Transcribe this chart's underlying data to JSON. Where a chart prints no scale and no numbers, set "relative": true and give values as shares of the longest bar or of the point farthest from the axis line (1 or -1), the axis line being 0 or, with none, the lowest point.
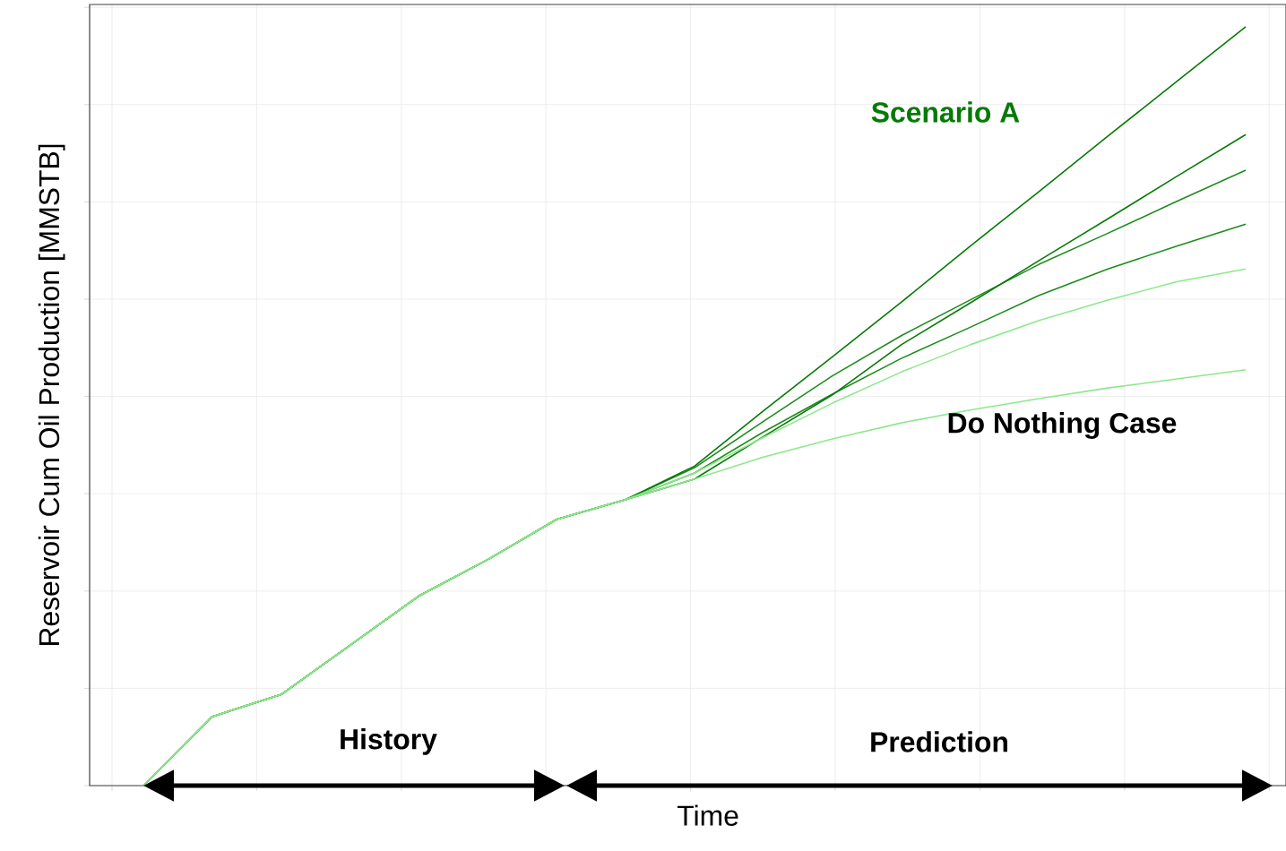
{
  "chart_data": {
    "type": "line",
    "relative": true,
    "grid": true,
    "xlabel": "Time",
    "ylabel": "Reservoir Cum Oil Production [MMSTB]",
    "categories": [
      null,
      null,
      null,
      null,
      null,
      null,
      null,
      null,
      null,
      null,
      null,
      null,
      null,
      null,
      null,
      null,
      null
    ],
    "series": [
      {
        "name": "Scenario A",
        "color": "#067a06",
        "values": [
          0,
          0.091,
          0.12,
          0.185,
          0.25,
          0.298,
          0.351,
          0.377,
          0.421,
          0.494,
          0.565,
          0.637,
          0.711,
          0.783,
          0.856,
          0.928,
          1.0
        ]
      },
      {
        "color": "#067a06",
        "values": [
          0,
          0.091,
          0.12,
          0.185,
          0.25,
          0.298,
          0.351,
          0.377,
          0.404,
          0.46,
          0.515,
          0.581,
          0.636,
          0.692,
          0.747,
          0.803,
          0.858
        ]
      },
      {
        "color": "#1e8c1e",
        "values": [
          0,
          0.091,
          0.12,
          0.185,
          0.25,
          0.298,
          0.351,
          0.377,
          0.419,
          0.48,
          0.54,
          0.593,
          0.64,
          0.687,
          0.728,
          0.77,
          0.811
        ]
      },
      {
        "color": "#1e8c1e",
        "values": [
          0,
          0.091,
          0.12,
          0.185,
          0.25,
          0.298,
          0.351,
          0.377,
          0.412,
          0.466,
          0.516,
          0.563,
          0.604,
          0.646,
          0.681,
          0.711,
          0.74
        ]
      },
      {
        "color": "#8de88d",
        "values": [
          0,
          0.091,
          0.12,
          0.185,
          0.25,
          0.298,
          0.351,
          0.377,
          0.412,
          0.459,
          0.504,
          0.545,
          0.581,
          0.613,
          0.64,
          0.664,
          0.681
        ]
      },
      {
        "name": "Do Nothing Case",
        "color": "#8de88d",
        "values": [
          0,
          0.091,
          0.12,
          0.185,
          0.25,
          0.298,
          0.351,
          0.377,
          0.404,
          0.433,
          0.457,
          0.478,
          0.495,
          0.51,
          0.524,
          0.536,
          0.548
        ]
      }
    ],
    "annotations": [
      "History",
      "Prediction"
    ]
  }
}
